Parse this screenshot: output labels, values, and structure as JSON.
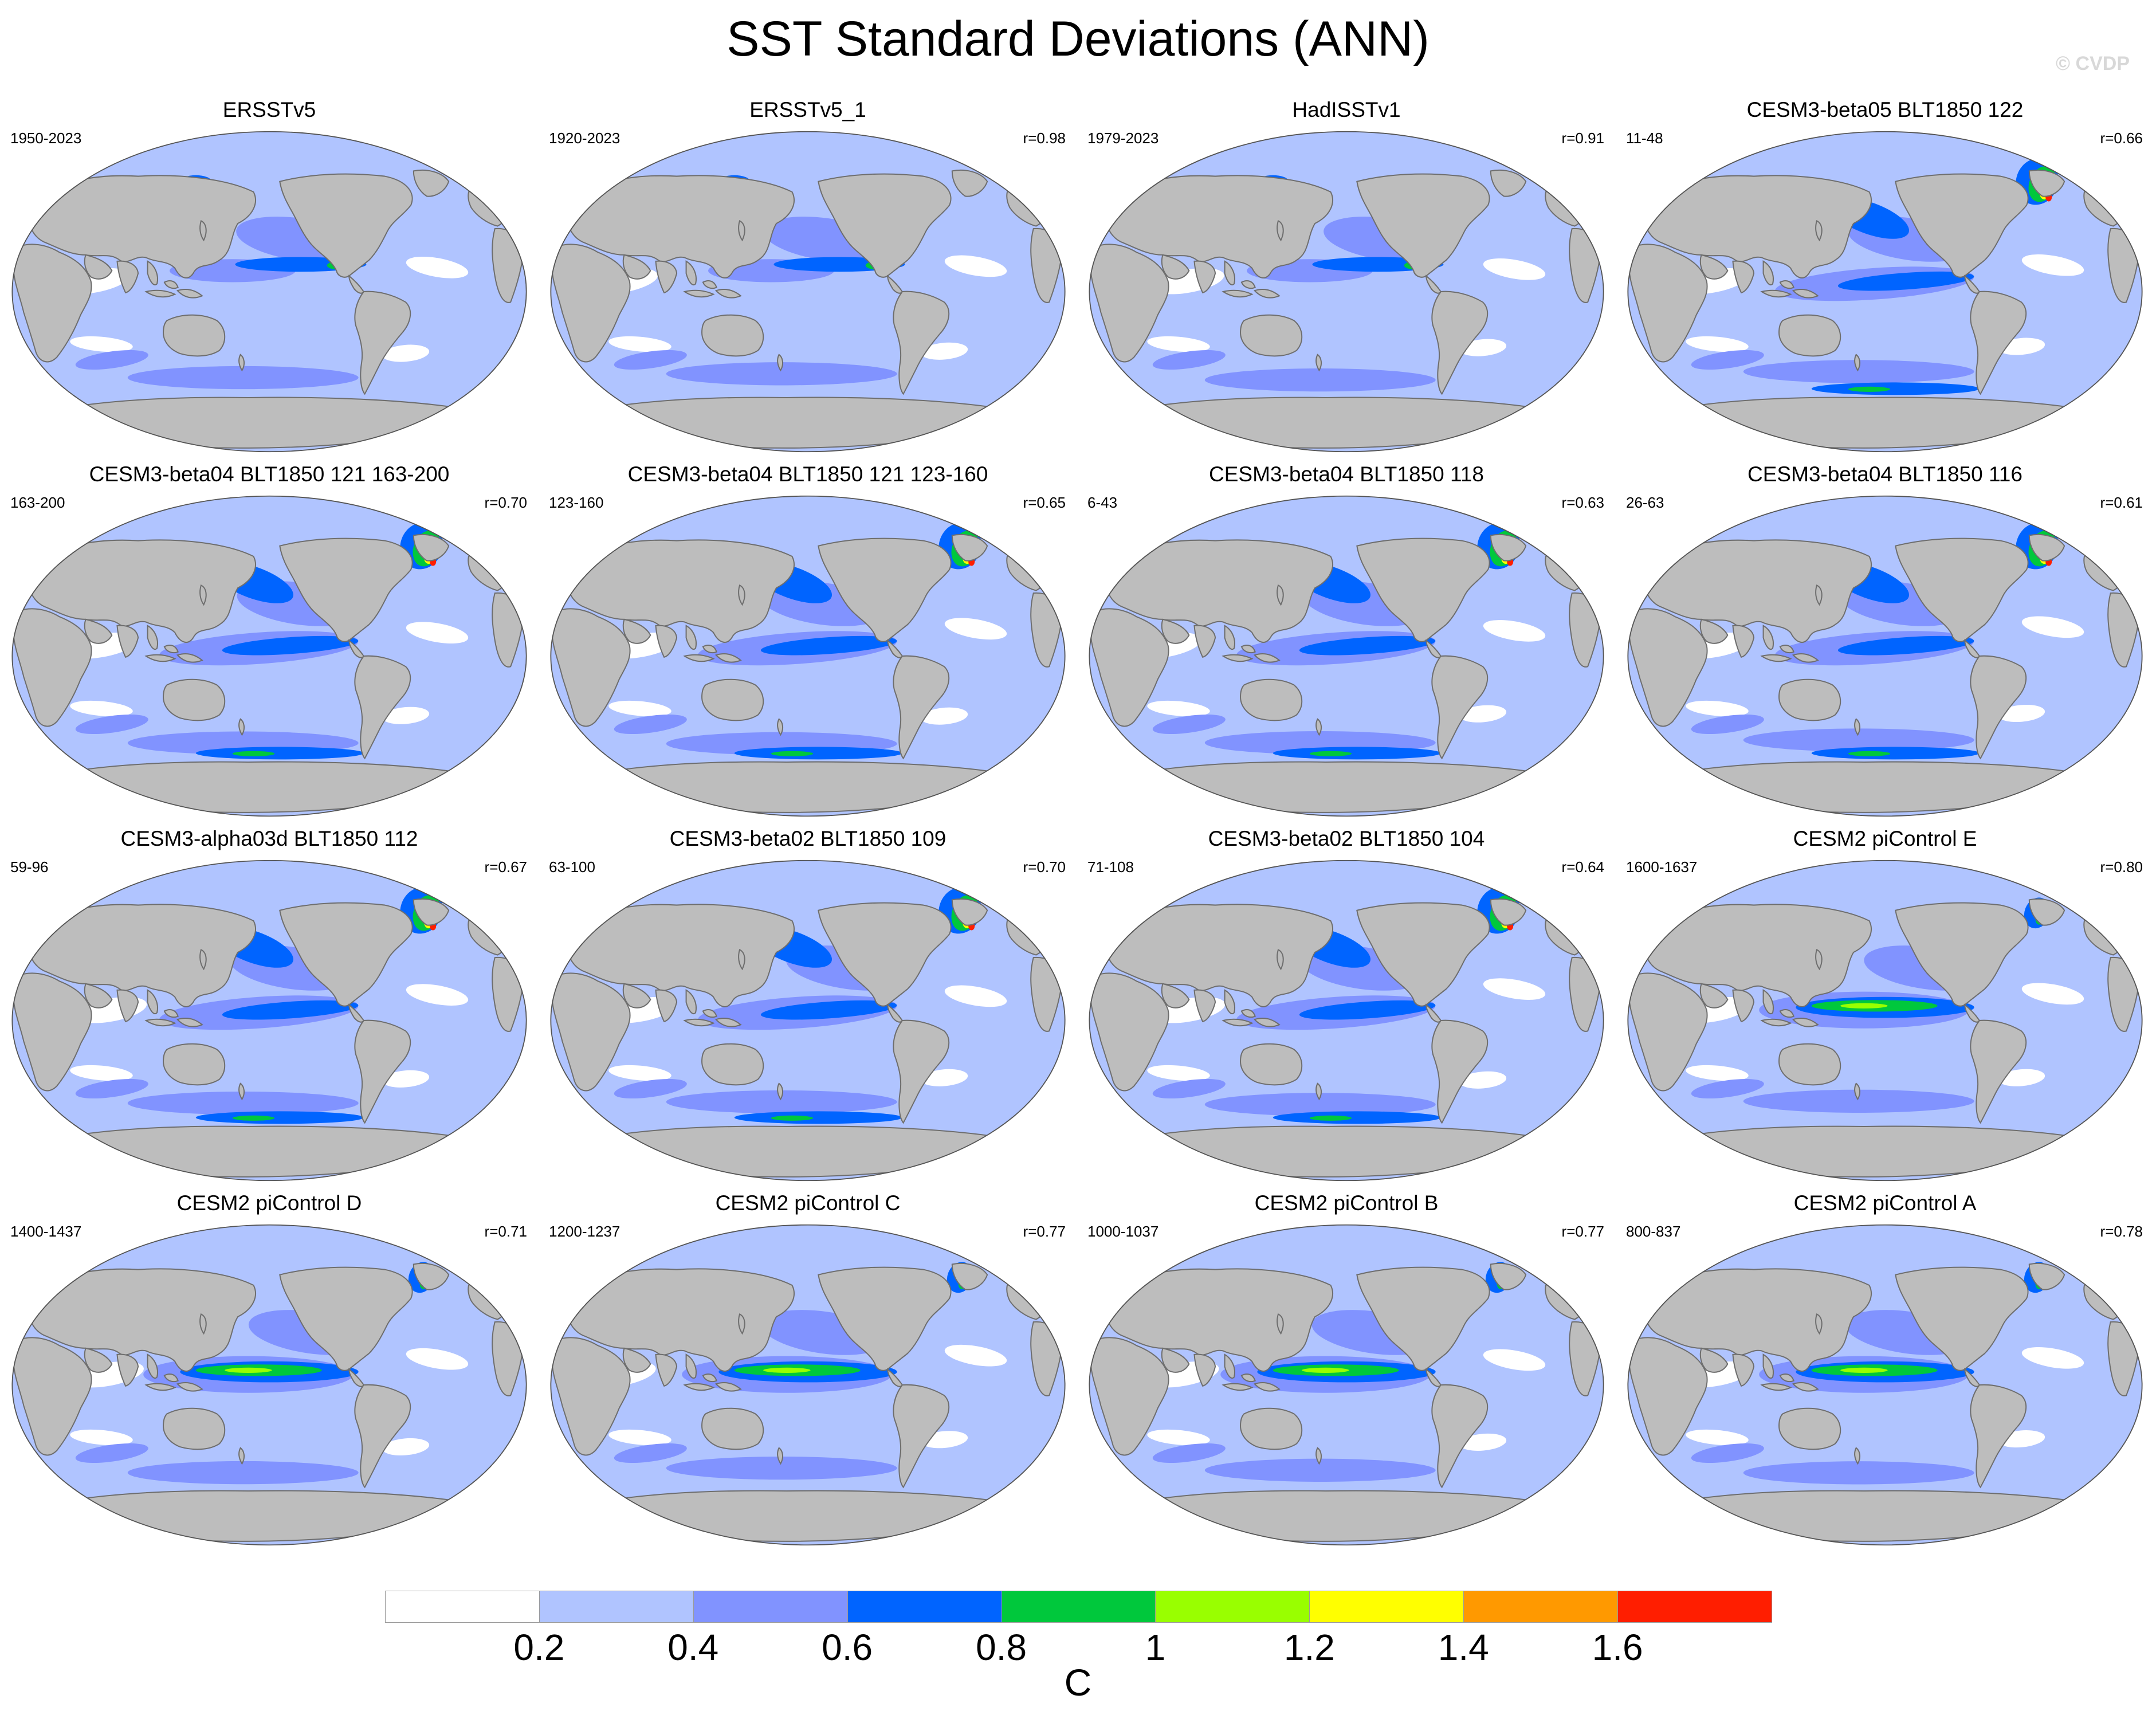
{
  "title": "SST Standard Deviations (ANN)",
  "watermark": "© CVDP",
  "colors": {
    "land": "#bdbdbd",
    "coast": "#6e6e6e",
    "levels": [
      "#ffffff",
      "#b0c4ff",
      "#8193ff",
      "#0064ff",
      "#00c83c",
      "#99ff00",
      "#ffff00",
      "#ff9900",
      "#ff1e00"
    ]
  },
  "panels": [
    {
      "title": "ERSSTv5",
      "range": "1950-2023",
      "r": "",
      "style": "obs"
    },
    {
      "title": "ERSSTv5_1",
      "range": "1920-2023",
      "r": "r=0.98",
      "style": "obs"
    },
    {
      "title": "HadISSTv1",
      "range": "1979-2023",
      "r": "r=0.91",
      "style": "obs"
    },
    {
      "title": "CESM3-beta05 BLT1850 122",
      "range": "11-48",
      "r": "r=0.66",
      "style": "cesm3"
    },
    {
      "title": "CESM3-beta04 BLT1850 121 163-200",
      "range": "163-200",
      "r": "r=0.70",
      "style": "cesm3"
    },
    {
      "title": "CESM3-beta04 BLT1850 121 123-160",
      "range": "123-160",
      "r": "r=0.65",
      "style": "cesm3"
    },
    {
      "title": "CESM3-beta04 BLT1850 118",
      "range": "6-43",
      "r": "r=0.63",
      "style": "cesm3"
    },
    {
      "title": "CESM3-beta04 BLT1850 116",
      "range": "26-63",
      "r": "r=0.61",
      "style": "cesm3"
    },
    {
      "title": "CESM3-alpha03d BLT1850 112",
      "range": "59-96",
      "r": "r=0.67",
      "style": "cesm3"
    },
    {
      "title": "CESM3-beta02 BLT1850 109",
      "range": "63-100",
      "r": "r=0.70",
      "style": "cesm3"
    },
    {
      "title": "CESM3-beta02 BLT1850 104",
      "range": "71-108",
      "r": "r=0.64",
      "style": "cesm3"
    },
    {
      "title": "CESM2 piControl E",
      "range": "1600-1637",
      "r": "r=0.80",
      "style": "cesm2"
    },
    {
      "title": "CESM2 piControl D",
      "range": "1400-1437",
      "r": "r=0.71",
      "style": "cesm2"
    },
    {
      "title": "CESM2 piControl C",
      "range": "1200-1237",
      "r": "r=0.77",
      "style": "cesm2"
    },
    {
      "title": "CESM2 piControl B",
      "range": "1000-1037",
      "r": "r=0.77",
      "style": "cesm2"
    },
    {
      "title": "CESM2 piControl A",
      "range": "800-837",
      "r": "r=0.78",
      "style": "cesm2"
    }
  ],
  "colorbar": {
    "ticks": [
      "0.2",
      "0.4",
      "0.6",
      "0.8",
      "1",
      "1.2",
      "1.4",
      "1.6"
    ],
    "unit": "C"
  }
}
